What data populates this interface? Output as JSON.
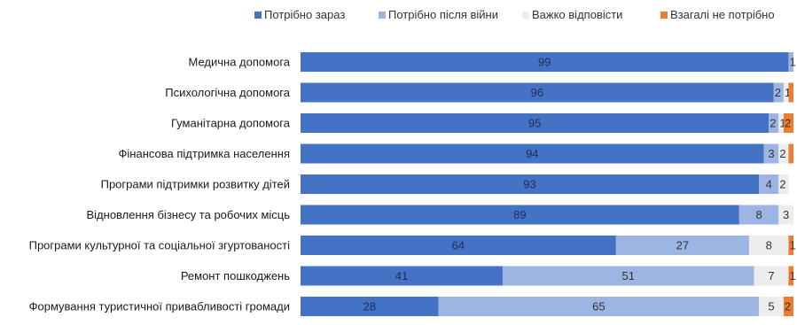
{
  "chart_data": {
    "type": "bar",
    "orientation": "horizontal",
    "stacked": true,
    "legend_position": "top",
    "grid": false,
    "xlim": [
      0,
      100
    ],
    "categories": [
      "Медична допомога",
      "Психологічна допомога",
      "Гуманітарна допомога",
      "Фінансова підтримка населення",
      "Програми підтримки розвитку дітей",
      "Відновлення бізнесу та робочих місць",
      "Програми культурної та соціальної згуртованості",
      "Ремонт пошкоджень",
      "Формування туристичної привабливості громади"
    ],
    "series": [
      {
        "name": "Потрібно зараз",
        "color": "#4472c4",
        "values": [
          99,
          96,
          95,
          94,
          93,
          89,
          64,
          41,
          28
        ]
      },
      {
        "name": "Потрібно після війни",
        "color": "#9db5e3",
        "values": [
          1,
          2,
          2,
          3,
          4,
          8,
          27,
          51,
          65
        ]
      },
      {
        "name": "Важко відповісти",
        "color": "#ededed",
        "values": [
          0,
          1,
          1,
          2,
          2,
          3,
          8,
          7,
          5
        ]
      },
      {
        "name": "Взагалі не потрібно",
        "color": "#ed7d31",
        "values": [
          0,
          1,
          2,
          1,
          0,
          0,
          1,
          1,
          2
        ]
      }
    ],
    "labels": [
      [
        "99",
        "1",
        null,
        null
      ],
      [
        "96",
        "2",
        "1",
        null
      ],
      [
        "95",
        "2",
        "1",
        "2"
      ],
      [
        "94",
        "3",
        "2",
        null
      ],
      [
        "93",
        "4",
        "2",
        null
      ],
      [
        "89",
        "8",
        "3",
        null
      ],
      [
        "64",
        "27",
        "8",
        "1"
      ],
      [
        "41",
        "51",
        "7",
        "1"
      ],
      [
        "28",
        "65",
        "5",
        "2"
      ]
    ]
  }
}
